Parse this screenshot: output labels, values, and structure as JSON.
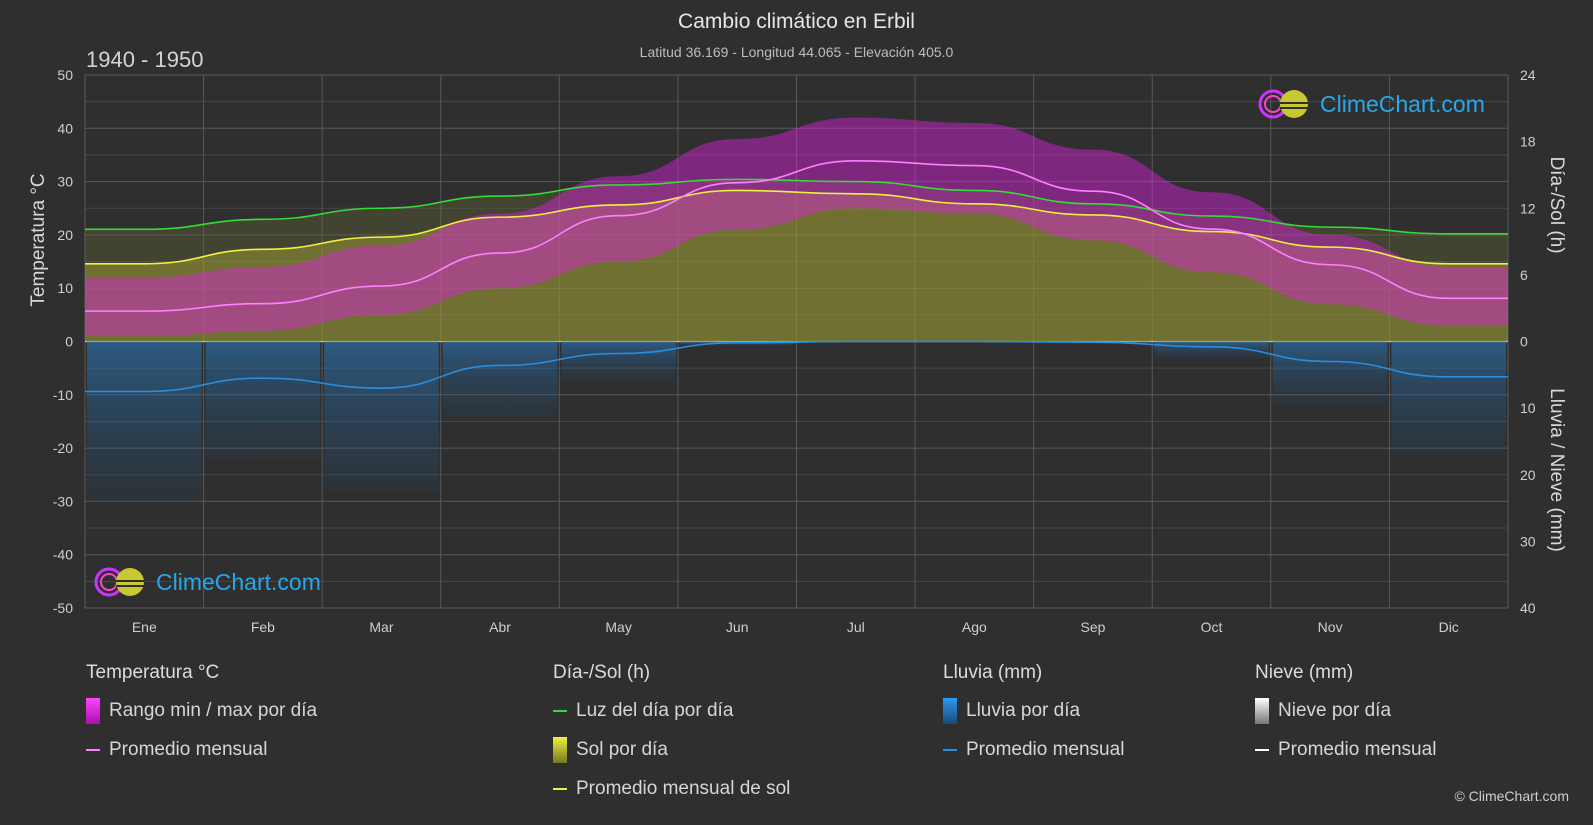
{
  "header": {
    "title": "Cambio climático en Erbil",
    "subtitle": "Latitud 36.169 - Longitud 44.065 - Elevación 405.0",
    "period": "1940 - 1950"
  },
  "brand": {
    "logo_text": "ClimeChart.com",
    "copyright": "© ClimeChart.com"
  },
  "colors": {
    "background": "#2f2f2f",
    "temp_range": "#e020e0",
    "temp_avg": "#ff80ff",
    "daylight": "#33dd33",
    "sun": "#c8c832",
    "sun_avg": "#f0f040",
    "rain": "#2288dd",
    "rain_avg": "#2a8ee0",
    "snow": "#ffffff"
  },
  "legend": {
    "temperature": {
      "head": "Temperatura °C",
      "range": "Rango min / max por día",
      "avg": "Promedio mensual"
    },
    "daysun": {
      "head": "Día-/Sol (h)",
      "daylight": "Luz del día por día",
      "sun": "Sol por día",
      "sun_avg": "Promedio mensual de sol"
    },
    "rain": {
      "head": "Lluvia (mm)",
      "rain": "Lluvia por día",
      "avg": "Promedio mensual"
    },
    "snow": {
      "head": "Nieve (mm)",
      "snow": "Nieve por día",
      "avg": "Promedio mensual"
    }
  },
  "chart_data": {
    "type": "area",
    "categories": [
      "Ene",
      "Feb",
      "Mar",
      "Abr",
      "May",
      "Jun",
      "Jul",
      "Ago",
      "Sep",
      "Oct",
      "Nov",
      "Dic"
    ],
    "axes": {
      "left": {
        "label": "Temperatura °C",
        "min": -50,
        "max": 50,
        "ticks": [
          50,
          40,
          30,
          20,
          10,
          0,
          -10,
          -20,
          -30,
          -40,
          -50
        ]
      },
      "right_top": {
        "label": "Día-/Sol (h)",
        "min": 0,
        "max": 24,
        "ticks": [
          24,
          18,
          12,
          6,
          0
        ]
      },
      "right_bottom": {
        "label": "Lluvia / Nieve (mm)",
        "min": 0,
        "max": 40,
        "ticks": [
          0,
          10,
          20,
          30,
          40
        ]
      }
    },
    "grid": true,
    "series": [
      {
        "name": "Rango min / max por día",
        "kind": "band",
        "axis": "temp",
        "min": [
          1,
          2,
          5,
          10,
          15,
          21,
          25,
          24,
          19,
          13,
          7,
          3
        ],
        "max": [
          12,
          14,
          18,
          24,
          31,
          38,
          42,
          41,
          36,
          28,
          20,
          14
        ]
      },
      {
        "name": "Promedio mensual",
        "kind": "line",
        "axis": "temp",
        "values": [
          5.7,
          7.1,
          10.4,
          16.6,
          23.6,
          29.8,
          33.9,
          33.0,
          28.2,
          21.1,
          14.4,
          8.1
        ]
      },
      {
        "name": "Luz del día por día",
        "kind": "line",
        "axis": "hours",
        "values": [
          10.1,
          11.0,
          12.0,
          13.1,
          14.1,
          14.6,
          14.4,
          13.6,
          12.4,
          11.3,
          10.3,
          9.7
        ]
      },
      {
        "name": "Sol por día",
        "kind": "area",
        "axis": "hours",
        "values": [
          7.0,
          8.3,
          9.4,
          11.2,
          12.3,
          13.6,
          13.3,
          12.4,
          11.4,
          9.9,
          8.5,
          7.0
        ]
      },
      {
        "name": "Promedio mensual de sol",
        "kind": "line",
        "axis": "hours",
        "values": [
          7.0,
          8.3,
          9.4,
          11.2,
          12.3,
          13.6,
          13.3,
          12.4,
          11.4,
          9.9,
          8.5,
          7.0
        ]
      },
      {
        "name": "Lluvia por día",
        "kind": "bars",
        "axis": "rain",
        "values": [
          7.5,
          5.5,
          7.0,
          3.6,
          1.8,
          0.2,
          0.0,
          0.0,
          0.1,
          0.8,
          3.0,
          5.3
        ]
      },
      {
        "name": "Promedio mensual",
        "kind": "line",
        "axis": "rain",
        "values": [
          7.5,
          5.5,
          7.0,
          3.6,
          1.8,
          0.2,
          0.0,
          0.0,
          0.1,
          0.8,
          3.0,
          5.3
        ]
      }
    ]
  }
}
